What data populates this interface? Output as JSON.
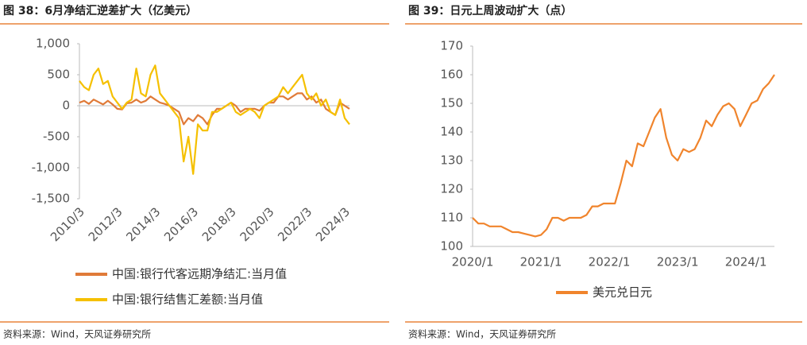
{
  "chart_data": [
    {
      "type": "line",
      "title": "图 38：6月净结汇逆差扩大（亿美元）",
      "source": "资料来源：Wind，天风证券研究所",
      "categories": [
        "2010/3",
        null,
        null,
        null,
        null,
        null,
        null,
        null,
        "2012/3",
        null,
        null,
        null,
        null,
        null,
        null,
        null,
        "2014/3",
        null,
        null,
        null,
        null,
        null,
        null,
        null,
        "2016/3",
        null,
        null,
        null,
        null,
        null,
        null,
        null,
        "2018/3",
        null,
        null,
        null,
        null,
        null,
        null,
        null,
        "2020/3",
        null,
        null,
        null,
        null,
        null,
        null,
        null,
        "2022/3",
        null,
        null,
        null,
        null,
        null,
        null,
        null,
        "2024/3",
        null
      ],
      "ylim": [
        -1500,
        1000
      ],
      "yticks": [
        {
          "value": 1000,
          "label": "1,000"
        },
        500,
        0,
        -500,
        {
          "value": -1000,
          "label": "-1,000"
        },
        {
          "value": -1500,
          "label": "-1,500"
        }
      ],
      "series": [
        {
          "name": "中国:银行代客远期净结汇:当月值",
          "color": "#e07b39",
          "values": [
            50,
            80,
            30,
            100,
            60,
            20,
            80,
            20,
            -50,
            -60,
            40,
            50,
            100,
            50,
            80,
            150,
            100,
            50,
            30,
            0,
            -50,
            -100,
            -300,
            -200,
            -250,
            -150,
            -200,
            -300,
            -150,
            -50,
            -50,
            0,
            50,
            0,
            -100,
            -50,
            -50,
            -50,
            -80,
            0,
            50,
            50,
            150,
            150,
            100,
            150,
            200,
            200,
            100,
            150,
            50,
            100,
            -50,
            -100,
            -150,
            50,
            0,
            -50
          ]
        },
        {
          "name": "中国:银行结售汇差额:当月值",
          "color": "#f5c000",
          "values": [
            400,
            300,
            250,
            500,
            600,
            350,
            400,
            150,
            50,
            -50,
            50,
            100,
            600,
            200,
            150,
            500,
            650,
            200,
            100,
            0,
            -100,
            -200,
            -900,
            -500,
            -1100,
            -300,
            -400,
            -400,
            -100,
            -100,
            -50,
            0,
            50,
            -100,
            -150,
            -100,
            -50,
            -100,
            -200,
            0,
            50,
            100,
            150,
            300,
            200,
            300,
            400,
            500,
            200,
            100,
            200,
            0,
            100,
            -100,
            -150,
            100,
            -200,
            -300
          ]
        }
      ]
    },
    {
      "type": "line",
      "title": "图 39：日元上周波动扩大（点）",
      "source": "资料来源：Wind，天风证券研究所",
      "categories": [
        "2020/1",
        null,
        null,
        null,
        null,
        null,
        null,
        null,
        null,
        null,
        null,
        null,
        "2021/1",
        null,
        null,
        null,
        null,
        null,
        null,
        null,
        null,
        null,
        null,
        null,
        "2022/1",
        null,
        null,
        null,
        null,
        null,
        null,
        null,
        null,
        null,
        null,
        null,
        "2023/1",
        null,
        null,
        null,
        null,
        null,
        null,
        null,
        null,
        null,
        null,
        null,
        "2024/1",
        null,
        null,
        null,
        null,
        null
      ],
      "ylim": [
        100,
        170
      ],
      "yticks": [
        100,
        110,
        120,
        130,
        140,
        150,
        160,
        170
      ],
      "series": [
        {
          "name": "美元兑日元",
          "color": "#f0842c",
          "values": [
            110,
            108,
            108,
            107,
            107,
            107,
            106,
            105,
            105,
            104.5,
            104,
            103.5,
            104,
            106,
            110,
            110,
            109,
            110,
            110,
            110,
            111,
            114,
            114,
            115,
            115,
            115,
            122,
            130,
            128,
            136,
            135,
            140,
            145,
            148,
            138,
            132,
            130,
            134,
            133,
            134,
            138,
            144,
            142,
            146,
            149,
            150,
            148,
            142,
            146,
            150,
            151,
            155,
            157,
            160
          ]
        }
      ]
    }
  ]
}
